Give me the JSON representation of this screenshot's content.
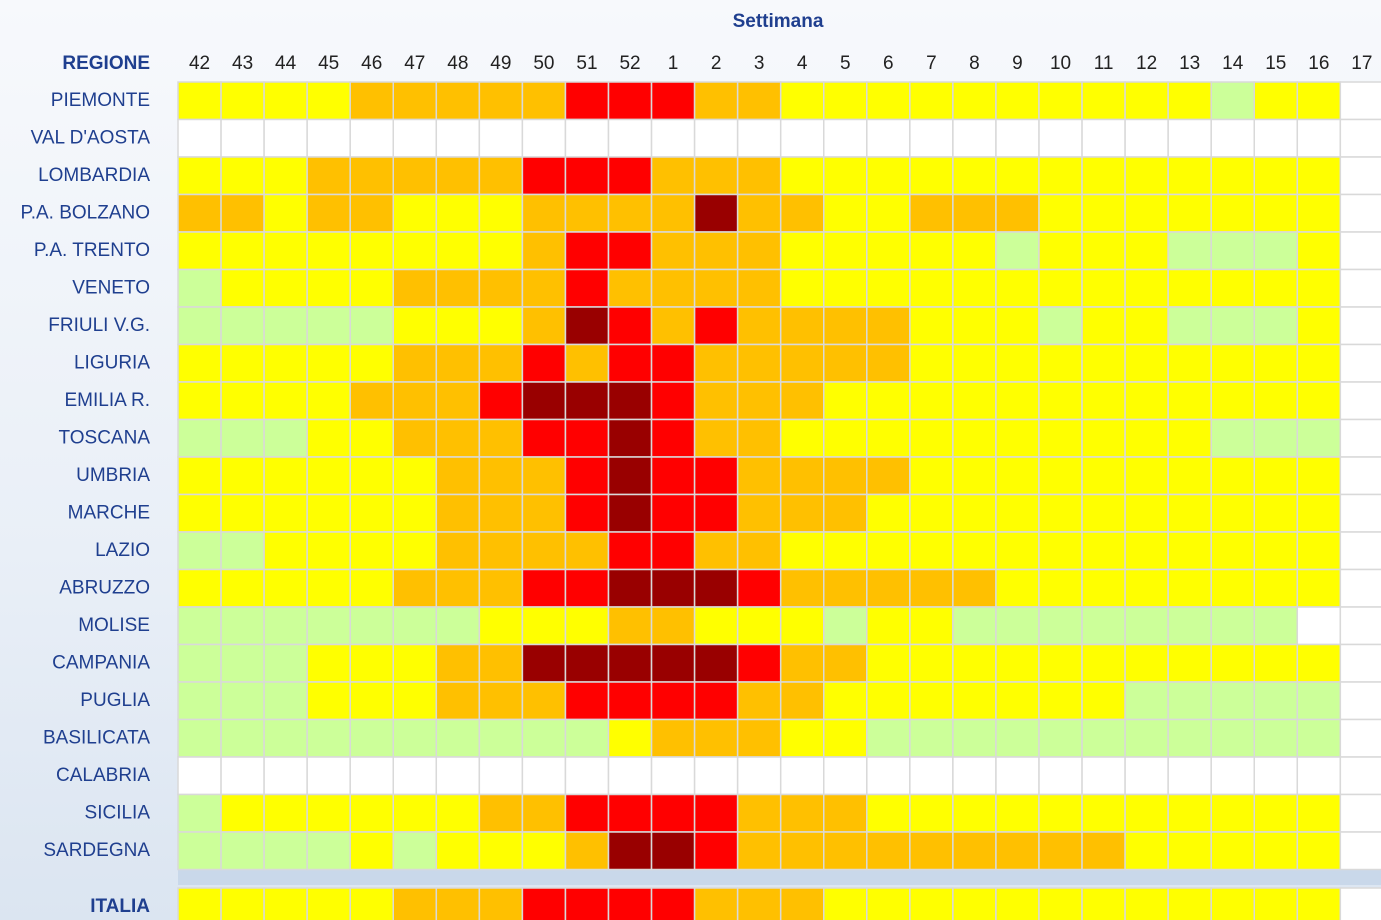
{
  "chart_data": {
    "type": "heatmap",
    "title": "Settimana",
    "row_header": "REGIONE",
    "weeks": [
      42,
      43,
      44,
      45,
      46,
      47,
      48,
      49,
      50,
      51,
      52,
      1,
      2,
      3,
      4,
      5,
      6,
      7,
      8,
      9,
      10,
      11,
      12,
      13,
      14,
      15,
      16,
      17
    ],
    "colors": [
      "#ffffff",
      "#ccff99",
      "#ffff00",
      "#ffc000",
      "#ff0000",
      "#990000"
    ],
    "regions": [
      "PIEMONTE",
      "VAL D'AOSTA",
      "LOMBARDIA",
      "P.A. BOLZANO",
      "P.A. TRENTO",
      "VENETO",
      "FRIULI V.G.",
      "LIGURIA",
      "EMILIA R.",
      "TOSCANA",
      "UMBRIA",
      "MARCHE",
      "LAZIO",
      "ABRUZZO",
      "MOLISE",
      "CAMPANIA",
      "PUGLIA",
      "BASILICATA",
      "CALABRIA",
      "SICILIA",
      "SARDEGNA"
    ],
    "cells": [
      [
        2,
        2,
        2,
        2,
        3,
        3,
        3,
        3,
        3,
        4,
        4,
        4,
        3,
        3,
        2,
        2,
        2,
        2,
        2,
        2,
        2,
        2,
        2,
        2,
        1,
        2,
        2,
        0
      ],
      [
        0,
        0,
        0,
        0,
        0,
        0,
        0,
        0,
        0,
        0,
        0,
        0,
        0,
        0,
        0,
        0,
        0,
        0,
        0,
        0,
        0,
        0,
        0,
        0,
        0,
        0,
        0,
        0
      ],
      [
        2,
        2,
        2,
        3,
        3,
        3,
        3,
        3,
        4,
        4,
        4,
        3,
        3,
        3,
        2,
        2,
        2,
        2,
        2,
        2,
        2,
        2,
        2,
        2,
        2,
        2,
        2,
        0
      ],
      [
        3,
        3,
        2,
        3,
        3,
        2,
        2,
        2,
        3,
        3,
        3,
        3,
        5,
        3,
        3,
        2,
        2,
        3,
        3,
        3,
        2,
        2,
        2,
        2,
        2,
        2,
        2,
        0
      ],
      [
        2,
        2,
        2,
        2,
        2,
        2,
        2,
        2,
        3,
        4,
        4,
        3,
        3,
        3,
        2,
        2,
        2,
        2,
        2,
        1,
        2,
        2,
        2,
        1,
        1,
        1,
        2,
        0
      ],
      [
        1,
        2,
        2,
        2,
        2,
        3,
        3,
        3,
        3,
        4,
        3,
        3,
        3,
        3,
        2,
        2,
        2,
        2,
        2,
        2,
        2,
        2,
        2,
        2,
        2,
        2,
        2,
        0
      ],
      [
        1,
        1,
        1,
        1,
        1,
        2,
        2,
        2,
        3,
        5,
        4,
        3,
        4,
        3,
        3,
        3,
        3,
        2,
        2,
        2,
        1,
        2,
        2,
        1,
        1,
        1,
        2,
        0
      ],
      [
        2,
        2,
        2,
        2,
        2,
        3,
        3,
        3,
        4,
        3,
        4,
        4,
        3,
        3,
        3,
        3,
        3,
        2,
        2,
        2,
        2,
        2,
        2,
        2,
        2,
        2,
        2,
        0
      ],
      [
        2,
        2,
        2,
        2,
        3,
        3,
        3,
        4,
        5,
        5,
        5,
        4,
        3,
        3,
        3,
        2,
        2,
        2,
        2,
        2,
        2,
        2,
        2,
        2,
        2,
        2,
        2,
        0
      ],
      [
        1,
        1,
        1,
        2,
        2,
        3,
        3,
        3,
        4,
        4,
        5,
        4,
        3,
        3,
        2,
        2,
        2,
        2,
        2,
        2,
        2,
        2,
        2,
        2,
        1,
        1,
        1,
        0
      ],
      [
        2,
        2,
        2,
        2,
        2,
        2,
        3,
        3,
        3,
        4,
        5,
        4,
        4,
        3,
        3,
        3,
        3,
        2,
        2,
        2,
        2,
        2,
        2,
        2,
        2,
        2,
        2,
        0
      ],
      [
        2,
        2,
        2,
        2,
        2,
        2,
        3,
        3,
        3,
        4,
        5,
        4,
        4,
        3,
        3,
        3,
        2,
        2,
        2,
        2,
        2,
        2,
        2,
        2,
        2,
        2,
        2,
        0
      ],
      [
        1,
        1,
        2,
        2,
        2,
        2,
        3,
        3,
        3,
        3,
        4,
        4,
        3,
        3,
        2,
        2,
        2,
        2,
        2,
        2,
        2,
        2,
        2,
        2,
        2,
        2,
        2,
        0
      ],
      [
        2,
        2,
        2,
        2,
        2,
        3,
        3,
        3,
        4,
        4,
        5,
        5,
        5,
        4,
        3,
        3,
        3,
        3,
        3,
        2,
        2,
        2,
        2,
        2,
        2,
        2,
        2,
        0
      ],
      [
        1,
        1,
        1,
        1,
        1,
        1,
        1,
        2,
        2,
        2,
        3,
        3,
        2,
        2,
        2,
        1,
        2,
        2,
        1,
        1,
        1,
        1,
        1,
        1,
        1,
        1,
        0,
        0
      ],
      [
        1,
        1,
        1,
        2,
        2,
        2,
        3,
        3,
        5,
        5,
        5,
        5,
        5,
        4,
        3,
        3,
        2,
        2,
        2,
        2,
        2,
        2,
        2,
        2,
        2,
        2,
        2,
        0
      ],
      [
        1,
        1,
        1,
        2,
        2,
        2,
        3,
        3,
        3,
        4,
        4,
        4,
        4,
        3,
        3,
        2,
        2,
        2,
        2,
        2,
        2,
        2,
        1,
        1,
        1,
        1,
        1,
        0
      ],
      [
        1,
        1,
        1,
        1,
        1,
        1,
        1,
        1,
        1,
        1,
        2,
        3,
        3,
        3,
        2,
        2,
        1,
        1,
        1,
        1,
        1,
        1,
        1,
        1,
        1,
        1,
        1,
        0
      ],
      [
        0,
        0,
        0,
        0,
        0,
        0,
        0,
        0,
        0,
        0,
        0,
        0,
        0,
        0,
        0,
        0,
        0,
        0,
        0,
        0,
        0,
        0,
        0,
        0,
        0,
        0,
        0,
        0
      ],
      [
        1,
        2,
        2,
        2,
        2,
        2,
        2,
        3,
        3,
        4,
        4,
        4,
        4,
        3,
        3,
        3,
        2,
        2,
        2,
        2,
        2,
        2,
        2,
        2,
        2,
        2,
        2,
        0
      ],
      [
        1,
        1,
        1,
        1,
        2,
        1,
        2,
        2,
        2,
        3,
        5,
        5,
        4,
        3,
        3,
        3,
        3,
        3,
        3,
        3,
        3,
        3,
        2,
        2,
        2,
        2,
        2,
        0
      ]
    ],
    "total": {
      "label": "ITALIA",
      "cells": [
        2,
        2,
        2,
        2,
        2,
        3,
        3,
        3,
        4,
        4,
        4,
        4,
        3,
        3,
        3,
        2,
        2,
        2,
        2,
        2,
        2,
        2,
        2,
        2,
        2,
        2,
        2,
        0
      ]
    }
  }
}
